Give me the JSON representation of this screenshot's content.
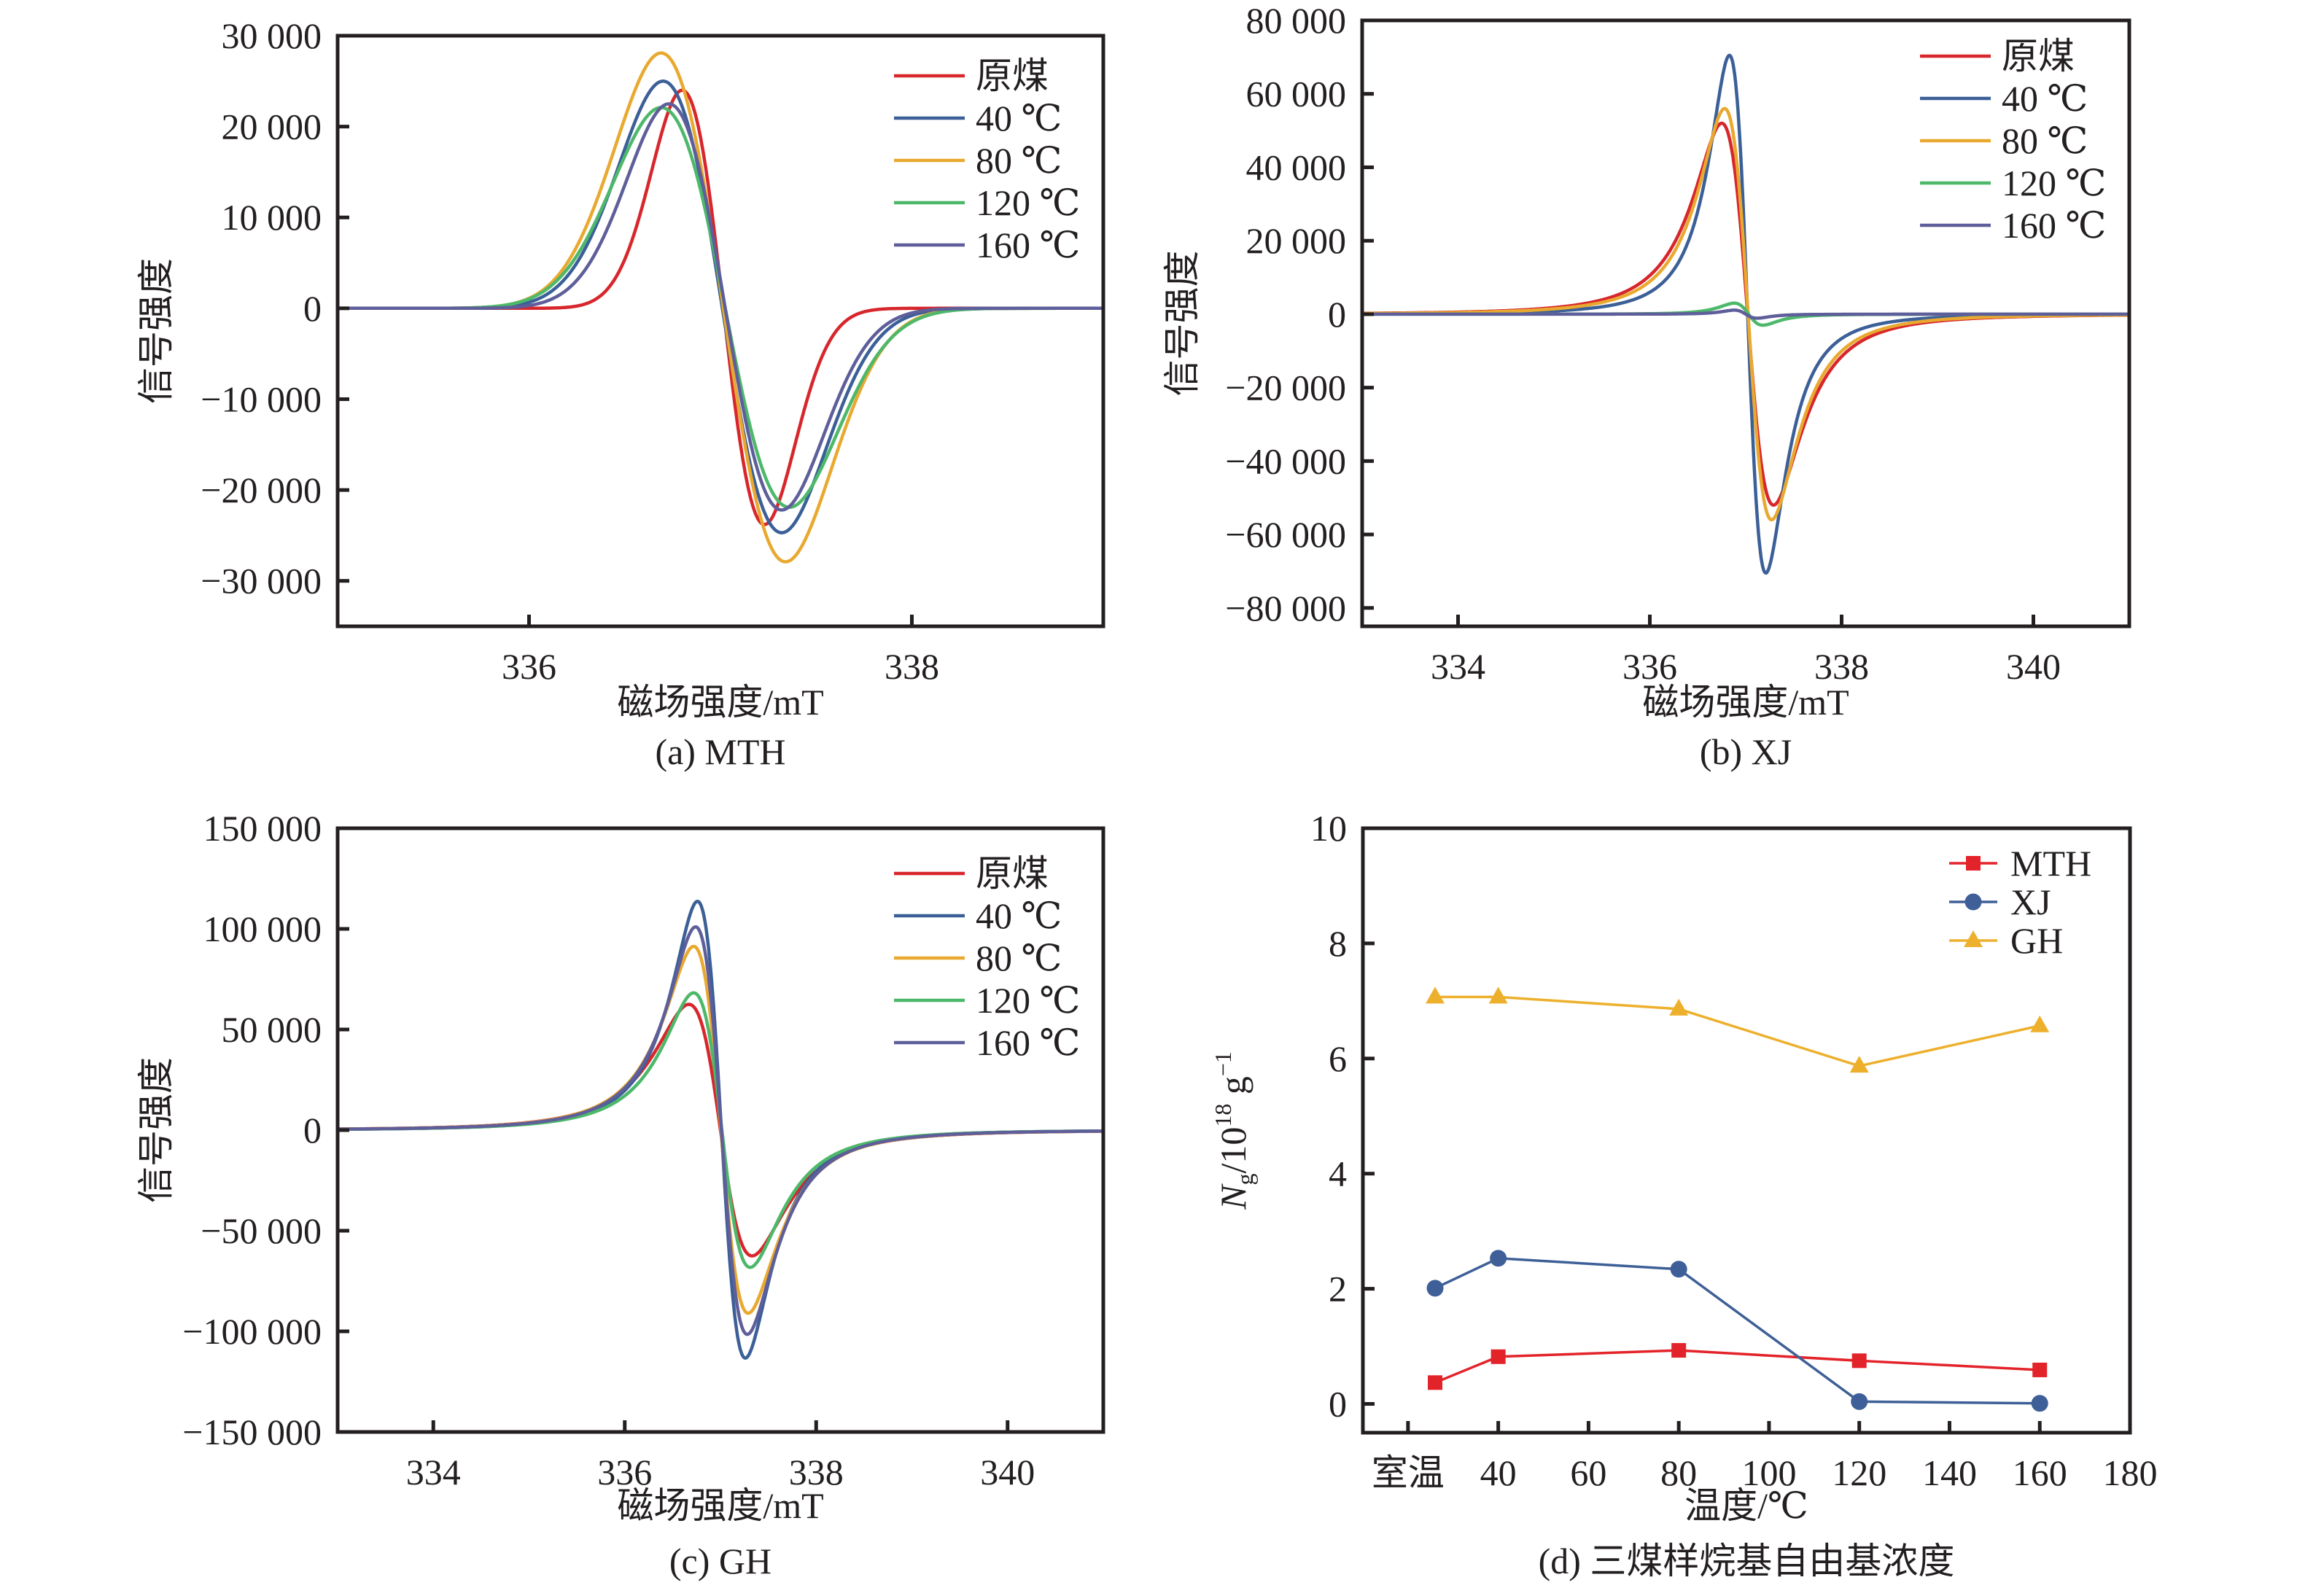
{
  "chart_data": [
    {
      "id": "a",
      "type": "line",
      "title": "",
      "caption": "(a) MTH",
      "xlabel": "磁场强度/mT",
      "ylabel": "信号强度",
      "xlim": [
        335,
        339
      ],
      "ylim": [
        -35000,
        30000
      ],
      "xticks": [
        336,
        338
      ],
      "xtick_labels": [
        "336",
        "338"
      ],
      "yticks": [
        30000,
        20000,
        10000,
        0,
        -10000,
        -20000,
        -30000
      ],
      "ytick_labels": [
        "30 000",
        "20 000",
        "10 000",
        "0",
        "−10 000",
        "−20 000",
        "−30 000"
      ],
      "grid": false,
      "legend_position": "top-right",
      "lineshape": "gaussian-derivative",
      "series": [
        {
          "name": "原煤",
          "color": "#D7262C",
          "peak_x": 336.8,
          "peak_y": 24000,
          "trough_x": 337.23,
          "trough_y": -23800
        },
        {
          "name": "40 ℃",
          "color": "#3B5F97",
          "peak_x": 336.7,
          "peak_y": 25000,
          "trough_x": 337.32,
          "trough_y": -24700
        },
        {
          "name": "80 ℃",
          "color": "#E9A930",
          "peak_x": 336.69,
          "peak_y": 28100,
          "trough_x": 337.34,
          "trough_y": -27900
        },
        {
          "name": "120 ℃",
          "color": "#4DB86A",
          "peak_x": 336.69,
          "peak_y": 22100,
          "trough_x": 337.36,
          "trough_y": -21900
        },
        {
          "name": "160 ℃",
          "color": "#5E5E9A",
          "peak_x": 336.73,
          "peak_y": 22500,
          "trough_x": 337.32,
          "trough_y": -22200
        }
      ]
    },
    {
      "id": "b",
      "type": "line",
      "title": "",
      "caption": "(b) XJ",
      "xlabel": "磁场强度/mT",
      "ylabel": "信号强度",
      "xlim": [
        333,
        341
      ],
      "ylim": [
        -85000,
        80000
      ],
      "xticks": [
        334,
        336,
        338,
        340
      ],
      "xtick_labels": [
        "334",
        "336",
        "338",
        "340"
      ],
      "yticks": [
        80000,
        60000,
        40000,
        20000,
        0,
        -20000,
        -40000,
        -60000,
        -80000
      ],
      "ytick_labels": [
        "80 000",
        "60 000",
        "40 000",
        "20 000",
        "0",
        "−20 000",
        "−40 000",
        "−60 000",
        "−80 000"
      ],
      "grid": false,
      "legend_position": "top-right",
      "lineshape": "lorentzian-derivative",
      "series": [
        {
          "name": "原煤",
          "color": "#D7262C",
          "peak_x": 336.75,
          "peak_y": 52000,
          "trough_x": 337.29,
          "trough_y": -52000
        },
        {
          "name": "40 ℃",
          "color": "#3B5F97",
          "peak_x": 336.83,
          "peak_y": 70500,
          "trough_x": 337.21,
          "trough_y": -70500
        },
        {
          "name": "80 ℃",
          "color": "#E9A930",
          "peak_x": 336.78,
          "peak_y": 56000,
          "trough_x": 337.27,
          "trough_y": -56000
        },
        {
          "name": "120 ℃",
          "color": "#4DB86A",
          "peak_x": 336.88,
          "peak_y": 3000,
          "trough_x": 337.18,
          "trough_y": -3000
        },
        {
          "name": "160 ℃",
          "color": "#5E5E9A",
          "peak_x": 336.88,
          "peak_y": 1100,
          "trough_x": 337.12,
          "trough_y": -1100
        }
      ]
    },
    {
      "id": "c",
      "type": "line",
      "title": "",
      "caption": "(c) GH",
      "xlabel": "磁场强度/mT",
      "ylabel": "信号强度",
      "xlim": [
        333,
        341
      ],
      "ylim": [
        -150000,
        150000
      ],
      "xticks": [
        334,
        336,
        338,
        340
      ],
      "xtick_labels": [
        "334",
        "336",
        "338",
        "340"
      ],
      "yticks": [
        150000,
        100000,
        50000,
        0,
        -50000,
        -100000,
        -150000
      ],
      "ytick_labels": [
        "150 000",
        "100 000",
        "50 000",
        "0",
        "−50 000",
        "−100 000",
        "−150 000"
      ],
      "grid": false,
      "legend_position": "top-right",
      "lineshape": "lorentzian-derivative",
      "series": [
        {
          "name": "原煤",
          "color": "#D7262C",
          "peak_x": 336.67,
          "peak_y": 62500,
          "trough_x": 337.33,
          "trough_y": -62500
        },
        {
          "name": "40 ℃",
          "color": "#3B5F97",
          "peak_x": 336.76,
          "peak_y": 113700,
          "trough_x": 337.26,
          "trough_y": -113300
        },
        {
          "name": "80 ℃",
          "color": "#E9A930",
          "peak_x": 336.72,
          "peak_y": 91300,
          "trough_x": 337.29,
          "trough_y": -91000
        },
        {
          "name": "120 ℃",
          "color": "#4DB86A",
          "peak_x": 336.72,
          "peak_y": 68200,
          "trough_x": 337.31,
          "trough_y": -68200
        },
        {
          "name": "160 ℃",
          "color": "#5E5E9A",
          "peak_x": 336.74,
          "peak_y": 101000,
          "trough_x": 337.28,
          "trough_y": -101500
        }
      ]
    },
    {
      "id": "d",
      "type": "line",
      "title": "",
      "caption": "(d) 三煤样烷基自由基浓度",
      "xlabel": "温度/℃",
      "ylabel": "Ng/10^18 g^-1",
      "ylabel_parts": {
        "main": "N",
        "sub": "g",
        "mid": "/10",
        "sup1": "18",
        "unit": " g",
        "sup2": "−1"
      },
      "xlim": [
        10,
        180
      ],
      "ylim": [
        -0.5,
        10
      ],
      "xticks": [
        20,
        40,
        60,
        80,
        100,
        120,
        140,
        160,
        180
      ],
      "xtick_labels": [
        "室温",
        "40",
        "60",
        "80",
        "100",
        "120",
        "140",
        "160",
        "180"
      ],
      "yticks": [
        0,
        2,
        4,
        6,
        8,
        10
      ],
      "ytick_labels": [
        "0",
        "2",
        "4",
        "6",
        "8",
        "10"
      ],
      "grid": false,
      "legend_position": "top-right",
      "x": [
        26,
        40,
        80,
        120,
        160
      ],
      "series": [
        {
          "name": "MTH",
          "color": "#E3232A",
          "marker": "square",
          "values": [
            0.37,
            0.82,
            0.93,
            0.75,
            0.59
          ]
        },
        {
          "name": "XJ",
          "color": "#3E5F97",
          "marker": "circle",
          "values": [
            2.01,
            2.53,
            2.34,
            0.04,
            0.01
          ]
        },
        {
          "name": "GH",
          "color": "#EDB02C",
          "marker": "triangle",
          "values": [
            7.07,
            7.07,
            6.86,
            5.87,
            6.57
          ]
        }
      ]
    }
  ]
}
